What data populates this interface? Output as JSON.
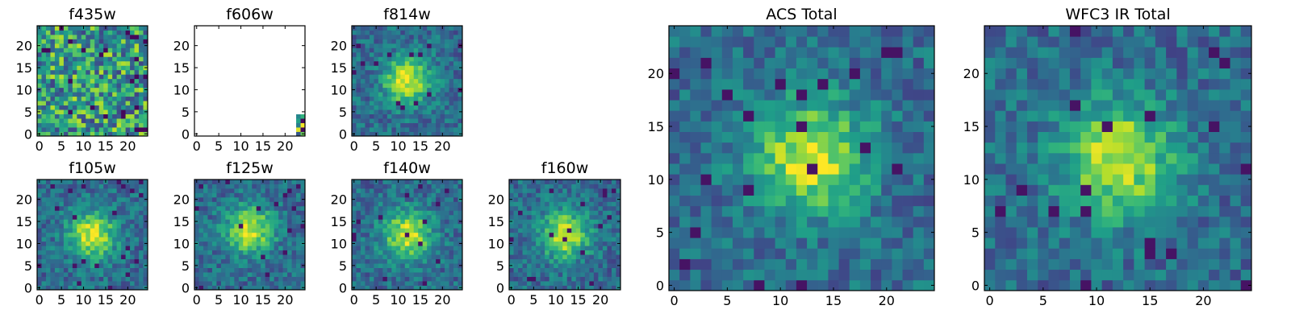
{
  "chart_data": [
    {
      "type": "heatmap",
      "title": "f435w",
      "xlim": [
        0,
        24
      ],
      "ylim": [
        0,
        24
      ],
      "xticks": [
        "0",
        "5",
        "10",
        "15",
        "20"
      ],
      "yticks": [
        "0",
        "5",
        "10",
        "15",
        "20"
      ],
      "colormap": "viridis",
      "pattern": "noise",
      "center": [
        12,
        12
      ]
    },
    {
      "type": "heatmap",
      "title": "f606w",
      "xlim": [
        0,
        24
      ],
      "ylim": [
        0,
        24
      ],
      "xticks": [
        "0",
        "5",
        "10",
        "15",
        "20"
      ],
      "yticks": [
        "0",
        "5",
        "10",
        "15",
        "20"
      ],
      "colormap": "viridis",
      "pattern": "blank-corner",
      "center": [
        24,
        0
      ]
    },
    {
      "type": "heatmap",
      "title": "f814w",
      "xlim": [
        0,
        24
      ],
      "ylim": [
        0,
        24
      ],
      "xticks": [
        "0",
        "5",
        "10",
        "15",
        "20"
      ],
      "yticks": [
        "0",
        "5",
        "10",
        "15",
        "20"
      ],
      "colormap": "viridis",
      "pattern": "blob",
      "center": [
        12,
        12
      ]
    },
    {
      "type": "heatmap",
      "title": "f105w",
      "xlim": [
        0,
        24
      ],
      "ylim": [
        0,
        24
      ],
      "xticks": [
        "0",
        "5",
        "10",
        "15",
        "20"
      ],
      "yticks": [
        "0",
        "5",
        "10",
        "15",
        "20"
      ],
      "colormap": "viridis",
      "pattern": "blob",
      "center": [
        12,
        12
      ]
    },
    {
      "type": "heatmap",
      "title": "f125w",
      "xlim": [
        0,
        24
      ],
      "ylim": [
        0,
        24
      ],
      "xticks": [
        "0",
        "5",
        "10",
        "15",
        "20"
      ],
      "yticks": [
        "0",
        "5",
        "10",
        "15",
        "20"
      ],
      "colormap": "viridis",
      "pattern": "blob",
      "center": [
        12,
        13
      ]
    },
    {
      "type": "heatmap",
      "title": "f140w",
      "xlim": [
        0,
        24
      ],
      "ylim": [
        0,
        24
      ],
      "xticks": [
        "0",
        "5",
        "10",
        "15",
        "20"
      ],
      "yticks": [
        "0",
        "5",
        "10",
        "15",
        "20"
      ],
      "colormap": "viridis",
      "pattern": "blob",
      "center": [
        12,
        12
      ]
    },
    {
      "type": "heatmap",
      "title": "f160w",
      "xlim": [
        0,
        24
      ],
      "ylim": [
        0,
        24
      ],
      "xticks": [
        "0",
        "5",
        "10",
        "15",
        "20"
      ],
      "yticks": [
        "0",
        "5",
        "10",
        "15",
        "20"
      ],
      "colormap": "viridis",
      "pattern": "blob",
      "center": [
        12,
        12
      ]
    },
    {
      "type": "heatmap",
      "title": "ACS Total",
      "xlim": [
        0,
        24
      ],
      "ylim": [
        0,
        24
      ],
      "xticks": [
        "0",
        "5",
        "10",
        "15",
        "20"
      ],
      "yticks": [
        "0",
        "5",
        "10",
        "15",
        "20"
      ],
      "colormap": "viridis",
      "pattern": "blob",
      "center": [
        13,
        12
      ]
    },
    {
      "type": "heatmap",
      "title": "WFC3 IR Total",
      "xlim": [
        0,
        24
      ],
      "ylim": [
        0,
        24
      ],
      "xticks": [
        "0",
        "5",
        "10",
        "15",
        "20"
      ],
      "yticks": [
        "0",
        "5",
        "10",
        "15",
        "20"
      ],
      "colormap": "viridis",
      "pattern": "blob",
      "center": [
        12,
        12
      ]
    }
  ]
}
